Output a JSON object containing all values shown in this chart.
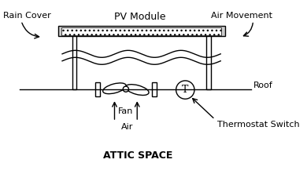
{
  "bg_color": "#ffffff",
  "line_color": "#000000",
  "title": "ATTIC SPACE",
  "labels": {
    "rain_cover": "Rain Cover",
    "pv_module": "PV Module",
    "air_movement": "Air Movement",
    "roof": "Roof",
    "fan": "Fan",
    "air": "Air",
    "thermostat": "Thermostat Switch"
  }
}
